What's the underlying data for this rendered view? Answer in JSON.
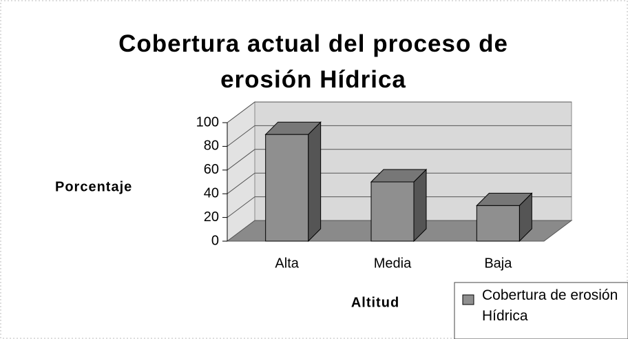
{
  "chart_data": {
    "type": "bar3d",
    "title": "Cobertura actual del proceso  de erosión Hídrica",
    "y_label": "Porcentaje",
    "x_label": "Altitud",
    "categories": [
      "Alta",
      "Media",
      "Baja"
    ],
    "series": [
      {
        "name": "Cobertura de erosión Hídrica",
        "color": "#8f8f8f",
        "values": [
          90,
          50,
          30
        ]
      }
    ],
    "ylim": [
      0,
      100
    ],
    "yticks": [
      0,
      20,
      40,
      60,
      80,
      100
    ],
    "grid": true,
    "legend": "bottom-right"
  }
}
